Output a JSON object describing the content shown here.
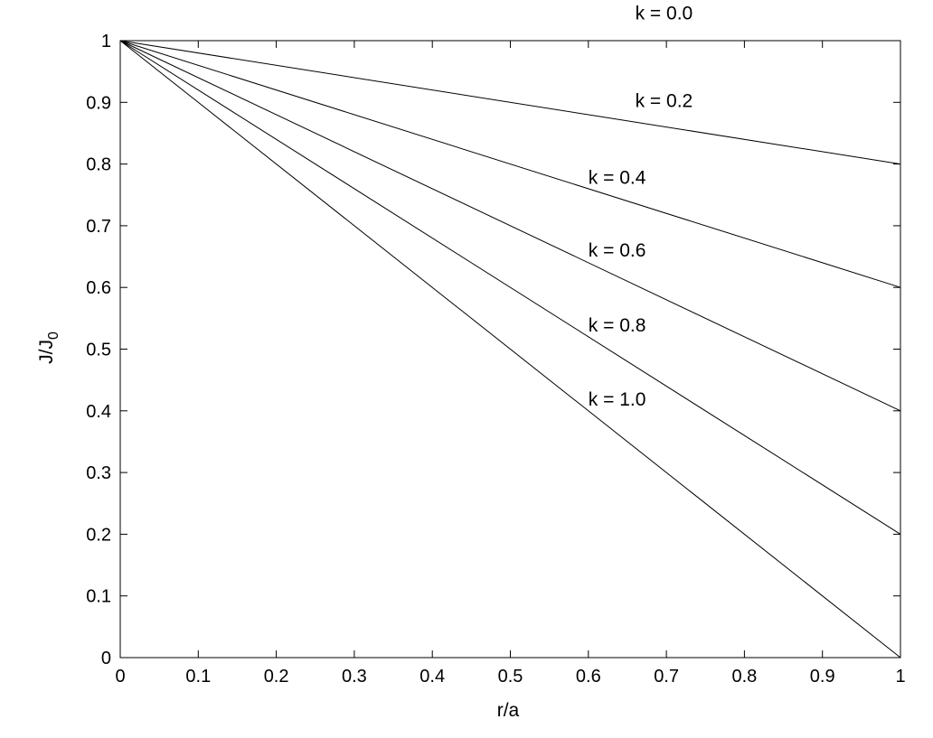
{
  "chart_data": {
    "type": "line",
    "title": "",
    "xlabel": "r/a",
    "ylabel_main": "J/J",
    "ylabel_sub": "0",
    "xlim": [
      0,
      1
    ],
    "ylim": [
      0,
      1
    ],
    "grid": false,
    "x_ticks": [
      "0",
      "0.1",
      "0.2",
      "0.3",
      "0.4",
      "0.5",
      "0.6",
      "0.7",
      "0.8",
      "0.9",
      "1"
    ],
    "y_ticks": [
      "0",
      "0.1",
      "0.2",
      "0.3",
      "0.4",
      "0.5",
      "0.6",
      "0.7",
      "0.8",
      "0.9",
      "1"
    ],
    "series": [
      {
        "name": "k = 0.0",
        "x": [
          0,
          1
        ],
        "y": [
          1.0,
          1.0
        ]
      },
      {
        "name": "k = 0.2",
        "x": [
          0,
          1
        ],
        "y": [
          1.0,
          0.8
        ]
      },
      {
        "name": "k = 0.4",
        "x": [
          0,
          1
        ],
        "y": [
          1.0,
          0.6
        ]
      },
      {
        "name": "k = 0.6",
        "x": [
          0,
          1
        ],
        "y": [
          1.0,
          0.4
        ]
      },
      {
        "name": "k = 0.8",
        "x": [
          0,
          1
        ],
        "y": [
          1.0,
          0.2
        ]
      },
      {
        "name": "k = 1.0",
        "x": [
          0,
          1
        ],
        "y": [
          1.0,
          0.0
        ]
      }
    ],
    "annotations": [
      {
        "text": "k = 0.0",
        "x": 0.66,
        "y": 1.045
      },
      {
        "text": "k = 0.2",
        "x": 0.66,
        "y": 0.903
      },
      {
        "text": "k = 0.4",
        "x": 0.6,
        "y": 0.778
      },
      {
        "text": "k = 0.6",
        "x": 0.6,
        "y": 0.66
      },
      {
        "text": "k = 0.8",
        "x": 0.6,
        "y": 0.539
      },
      {
        "text": "k = 1.0",
        "x": 0.6,
        "y": 0.419
      }
    ],
    "line_color": "#000000"
  }
}
